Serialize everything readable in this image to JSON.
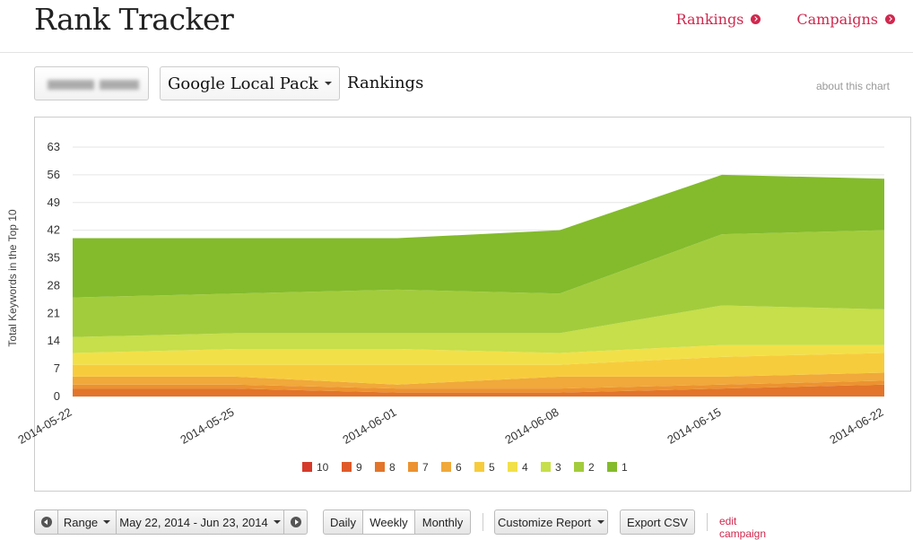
{
  "app": {
    "title": "Rank Tracker"
  },
  "nav": {
    "rankings": "Rankings",
    "campaigns": "Campaigns"
  },
  "subbar": {
    "source": "Google Local Pack",
    "label": "Rankings",
    "about": "about this chart"
  },
  "toolbar": {
    "range_label": "Range",
    "date_range": "May 22, 2014 - Jun 23, 2014",
    "daily": "Daily",
    "weekly": "Weekly",
    "monthly": "Monthly",
    "active_interval": "Weekly",
    "customize": "Customize Report",
    "export": "Export CSV",
    "edit": "edit campaign"
  },
  "chart_data": {
    "type": "area",
    "stacked": true,
    "ylabel": "Total Keywords in the Top 10",
    "xlabel": "",
    "ylim": [
      0,
      63
    ],
    "yticks": [
      0,
      7,
      14,
      21,
      28,
      35,
      42,
      49,
      56,
      63
    ],
    "grid": true,
    "legend_position": "bottom",
    "x": [
      "2014-05-22",
      "2014-05-25",
      "2014-06-01",
      "2014-06-08",
      "2014-06-15",
      "2014-06-22"
    ],
    "series": [
      {
        "name": "10",
        "color": "#d63a2a",
        "values": [
          0,
          0,
          0,
          0,
          0,
          0
        ]
      },
      {
        "name": "9",
        "color": "#df5a28",
        "values": [
          0,
          0,
          0,
          0,
          0,
          0
        ]
      },
      {
        "name": "8",
        "color": "#e2752a",
        "values": [
          2,
          2,
          1,
          1,
          2,
          3
        ]
      },
      {
        "name": "7",
        "color": "#ec9230",
        "values": [
          1,
          1,
          1,
          1,
          1,
          1
        ]
      },
      {
        "name": "6",
        "color": "#f0a93a",
        "values": [
          2,
          2,
          1,
          3,
          2,
          2
        ]
      },
      {
        "name": "5",
        "color": "#f7cc3c",
        "values": [
          3,
          3,
          5,
          3,
          5,
          5
        ]
      },
      {
        "name": "4",
        "color": "#f2e049",
        "values": [
          3,
          4,
          4,
          3,
          3,
          2
        ]
      },
      {
        "name": "3",
        "color": "#c6df4a",
        "values": [
          4,
          4,
          4,
          5,
          10,
          9
        ]
      },
      {
        "name": "2",
        "color": "#a3cc3c",
        "values": [
          10,
          10,
          11,
          10,
          18,
          20
        ]
      },
      {
        "name": "1",
        "color": "#83bb2c",
        "values": [
          15,
          14,
          13,
          16,
          15,
          13
        ]
      }
    ]
  }
}
